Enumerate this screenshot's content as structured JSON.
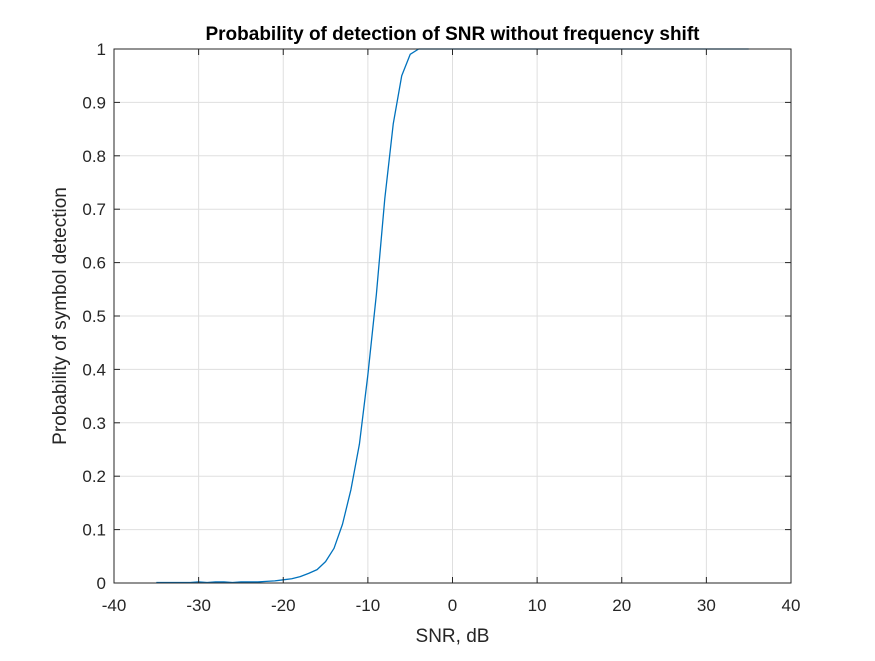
{
  "chart_data": {
    "type": "line",
    "title": "Probability of detection of SNR without frequency shift",
    "xlabel": "SNR, dB",
    "ylabel": "Probability of symbol detection",
    "xlim": [
      -40,
      40
    ],
    "ylim": [
      0,
      1
    ],
    "xticks": [
      -40,
      -30,
      -20,
      -10,
      0,
      10,
      20,
      30,
      40
    ],
    "yticks": [
      0,
      0.1,
      0.2,
      0.3,
      0.4,
      0.5,
      0.6,
      0.7,
      0.8,
      0.9,
      1
    ],
    "xtick_labels": [
      "-40",
      "-30",
      "-20",
      "-10",
      "0",
      "10",
      "20",
      "30",
      "40"
    ],
    "ytick_labels": [
      "0",
      "0.1",
      "0.2",
      "0.3",
      "0.4",
      "0.5",
      "0.6",
      "0.7",
      "0.8",
      "0.9",
      "1"
    ],
    "grid": true,
    "series": [
      {
        "color": "#0072bd",
        "x": [
          -35,
          -34,
          -33,
          -32,
          -31,
          -30,
          -29,
          -28,
          -27,
          -26,
          -25,
          -24,
          -23,
          -22,
          -21,
          -20,
          -19,
          -18,
          -17,
          -16,
          -15,
          -14,
          -13,
          -12,
          -11,
          -10,
          -9,
          -8,
          -7,
          -6,
          -5,
          -4,
          -3,
          -2,
          -1,
          0,
          1,
          2,
          3,
          4,
          5,
          10,
          15,
          20,
          25,
          30,
          35
        ],
        "y": [
          0.001,
          0.001,
          0.001,
          0.001,
          0.001,
          0.002,
          0.001,
          0.002,
          0.002,
          0.001,
          0.002,
          0.002,
          0.002,
          0.003,
          0.004,
          0.006,
          0.008,
          0.012,
          0.018,
          0.025,
          0.04,
          0.065,
          0.11,
          0.175,
          0.26,
          0.39,
          0.54,
          0.72,
          0.86,
          0.95,
          0.99,
          1.0,
          1.0,
          1.0,
          1.0,
          1.0,
          1.0,
          1.0,
          1.0,
          1.0,
          1.0,
          1.0,
          1.0,
          1.0,
          1.0,
          1.0,
          1.0
        ]
      }
    ]
  }
}
